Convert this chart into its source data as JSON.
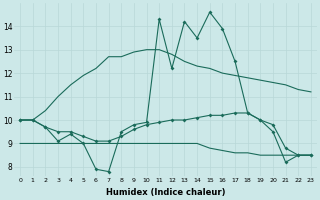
{
  "xlabel": "Humidex (Indice chaleur)",
  "bg_color": "#cce8e8",
  "line_color": "#1a6b5a",
  "grid_color": "#b8d8d8",
  "x_ticks": [
    0,
    1,
    2,
    3,
    4,
    5,
    6,
    7,
    8,
    9,
    10,
    11,
    12,
    13,
    14,
    15,
    16,
    17,
    18,
    19,
    20,
    21,
    22,
    23
  ],
  "y_ticks": [
    8,
    9,
    10,
    11,
    12,
    13,
    14
  ],
  "xlim": [
    -0.5,
    23.5
  ],
  "ylim": [
    7.6,
    15.0
  ],
  "series": [
    {
      "x": [
        0,
        1,
        2,
        3,
        4,
        5,
        6,
        7,
        8,
        9,
        10,
        11,
        12,
        13,
        14,
        15,
        16,
        17,
        18,
        19,
        20,
        21,
        22,
        23
      ],
      "y": [
        10.0,
        10.0,
        9.7,
        9.1,
        9.4,
        9.0,
        7.9,
        7.8,
        9.5,
        9.8,
        9.9,
        14.3,
        12.2,
        14.2,
        13.5,
        14.6,
        13.9,
        12.5,
        10.3,
        10.0,
        9.5,
        8.2,
        8.5,
        8.5
      ],
      "marker": true
    },
    {
      "x": [
        0,
        1,
        2,
        3,
        4,
        5,
        6,
        7,
        8,
        9,
        10,
        11,
        12,
        13,
        14,
        15,
        16,
        17,
        18,
        19,
        20,
        21,
        22,
        23
      ],
      "y": [
        10.0,
        10.0,
        9.7,
        9.5,
        9.5,
        9.3,
        9.1,
        9.1,
        9.3,
        9.6,
        9.8,
        9.9,
        10.0,
        10.0,
        10.1,
        10.2,
        10.2,
        10.3,
        10.3,
        10.0,
        9.8,
        8.8,
        8.5,
        8.5
      ],
      "marker": true
    },
    {
      "x": [
        0,
        1,
        2,
        3,
        4,
        5,
        6,
        7,
        8,
        9,
        10,
        11,
        12,
        13,
        14,
        15,
        16,
        17,
        18,
        19,
        20,
        21,
        22,
        23
      ],
      "y": [
        10.0,
        10.0,
        10.4,
        11.0,
        11.5,
        11.9,
        12.2,
        12.7,
        12.7,
        12.9,
        13.0,
        13.0,
        12.8,
        12.5,
        12.3,
        12.2,
        12.0,
        11.9,
        11.8,
        11.7,
        11.6,
        11.5,
        11.3,
        11.2
      ],
      "marker": false
    },
    {
      "x": [
        0,
        1,
        2,
        3,
        4,
        5,
        6,
        7,
        8,
        9,
        10,
        11,
        12,
        13,
        14,
        15,
        16,
        17,
        18,
        19,
        20,
        21,
        22,
        23
      ],
      "y": [
        9.0,
        9.0,
        9.0,
        9.0,
        9.0,
        9.0,
        9.0,
        9.0,
        9.0,
        9.0,
        9.0,
        9.0,
        9.0,
        9.0,
        9.0,
        8.8,
        8.7,
        8.6,
        8.6,
        8.5,
        8.5,
        8.5,
        8.5,
        8.5
      ],
      "marker": false
    }
  ]
}
